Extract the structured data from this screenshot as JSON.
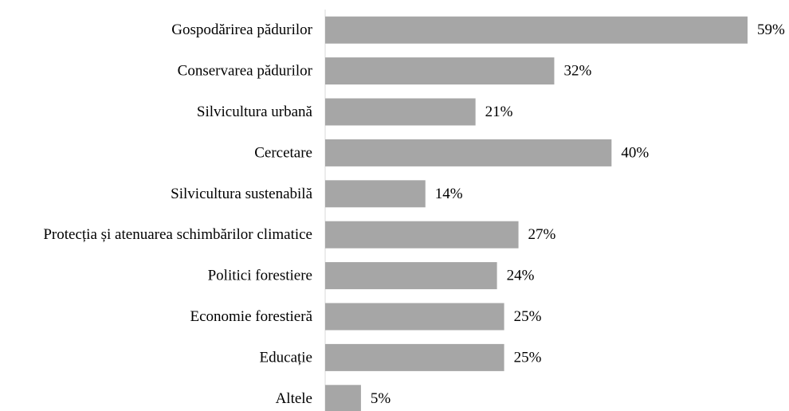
{
  "chart_data": {
    "type": "bar",
    "orientation": "horizontal",
    "categories": [
      "Gospodărirea pădurilor",
      "Conservarea pădurilor",
      "Silvicultura urbană",
      "Cercetare",
      "Silvicultura sustenabilă",
      "Protecția și atenuarea schimbărilor climatice",
      "Politici forestiere",
      "Economie forestieră",
      "Educație",
      "Altele"
    ],
    "values": [
      59,
      32,
      21,
      40,
      14,
      27,
      24,
      25,
      25,
      5
    ],
    "value_labels": [
      "59%",
      "32%",
      "21%",
      "40%",
      "14%",
      "27%",
      "24%",
      "25%",
      "25%",
      "5%"
    ],
    "unit": "%",
    "xlim": [
      0,
      59
    ],
    "title": "",
    "xlabel": "",
    "ylabel": "",
    "grid": false,
    "legend": "none",
    "colors": {
      "bar": "#a6a6a6",
      "axis": "#d9d9d9",
      "text": "#000000"
    }
  }
}
